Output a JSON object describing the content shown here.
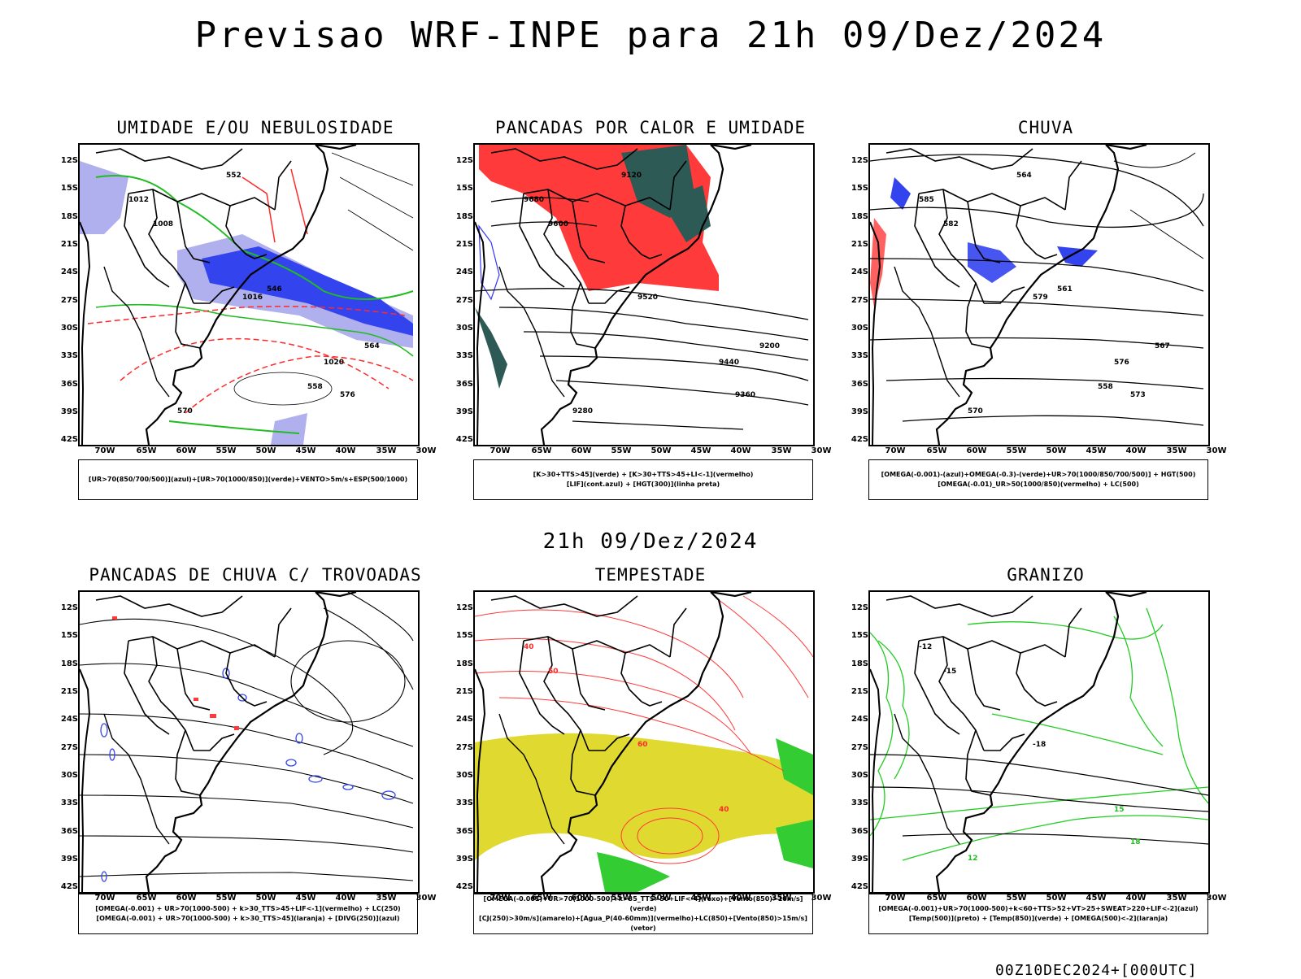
{
  "header": {
    "title": "Previsao WRF-INPE  para 21h 09/Dez/2024"
  },
  "middle_time": "21h 09/Dez/2024",
  "footer": {
    "stamp": "00Z10DEC2024+[000UTC]"
  },
  "axes": {
    "latitudes": [
      "12S",
      "15S",
      "18S",
      "21S",
      "24S",
      "27S",
      "30S",
      "33S",
      "36S",
      "39S",
      "42S"
    ],
    "longitudes": [
      "70W",
      "65W",
      "60W",
      "55W",
      "50W",
      "45W",
      "40W",
      "35W",
      "30W"
    ]
  },
  "panels": [
    {
      "title": "UMIDADE E/OU NEBULOSIDADE",
      "legend": [
        "[UR>70(850/700/500)](azul)+[UR>70(1000/850)](verde)+VENTO>5m/s+ESP(500/1000)"
      ],
      "contour_labels": [
        "1012",
        "1008",
        "1016",
        "1020",
        "576",
        "570",
        "564",
        "552",
        "546",
        "558"
      ]
    },
    {
      "title": "PANCADAS POR CALOR E UMIDADE",
      "legend": [
        "[K>30+TTS>45](verde) + [K>30+TTS>45+LI<-1](vermelho)",
        "[LIF](cont.azul) + [HGT(300)](linha preta)"
      ],
      "contour_labels": [
        "9680",
        "9600",
        "9520",
        "9440",
        "9360",
        "9280",
        "9200",
        "9120"
      ]
    },
    {
      "title": "CHUVA",
      "legend": [
        "[OMEGA(-0.001)-(azul)+OMEGA(-0.3)-(verde)+UR>70(1000/850/700/500)] + HGT(500)",
        "[OMEGA(-0.01)_UR>50(1000/850)(vermelho) + LC(500)"
      ],
      "contour_labels": [
        "585",
        "582",
        "579",
        "576",
        "573",
        "570",
        "567",
        "564",
        "561",
        "558"
      ]
    },
    {
      "title": "PANCADAS DE CHUVA C/ TROVOADAS",
      "legend": [
        "[OMEGA(-0.001) + UR>70(1000-500) + k>30_TTS>45+LIF<-1](vermelho) + LC(250)",
        "[OMEGA(-0.001) + UR>70(1000-500) + k>30_TTS>45](laranja) + [DIVG(250)](azul)"
      ],
      "contour_labels": []
    },
    {
      "title": "TEMPESTADE",
      "legend": [
        "[OMEGA(-0.001)+UR>70(1000-500)+k>35_TTS>50+LIF<-4](roxo)+[Vento(850)>10m/s](verde)",
        "[CJ(250)>30m/s](amarelo)+[Agua_P(40-60mm)](vermelho)+LC(850)+[Vento(850)>15m/s](vetor)"
      ],
      "contour_labels": [
        "40",
        "50",
        "60",
        "40"
      ]
    },
    {
      "title": "GRANIZO",
      "legend": [
        "[OMEGA(-0.001)+UR>70(1000-500)+k<60+TTS>52+VT>25+SWEAT>220+LIF<-2](azul)",
        "[Temp(500)](preto) + [Temp(850)](verde) + [OMEGA(500)<-2](laranja)"
      ],
      "contour_labels": [
        "-12",
        "-15",
        "-18",
        "15",
        "18",
        "12"
      ]
    }
  ],
  "colors": {
    "red": "#ff2a2a",
    "green": "#22bb22",
    "blue": "#3333ff",
    "lightblue": "#b0b0ee",
    "yellow": "#e0da30",
    "darkteal": "#2d5a55",
    "black": "#000000"
  }
}
